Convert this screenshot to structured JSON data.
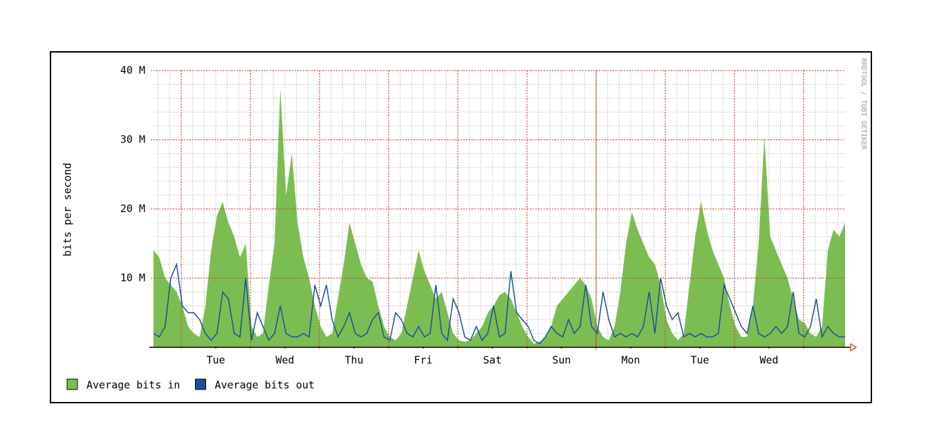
{
  "chart_data": {
    "type": "area",
    "y_label": "bits per second",
    "watermark": "RRDTOOL / TOBI OETIKER",
    "xlim": [
      0,
      240
    ],
    "xticks": [
      {
        "value": 21.6,
        "label": "Tue"
      },
      {
        "value": 45.6,
        "label": "Wed"
      },
      {
        "value": 69.6,
        "label": "Thu"
      },
      {
        "value": 93.6,
        "label": "Fri"
      },
      {
        "value": 117.6,
        "label": "Sat"
      },
      {
        "value": 141.6,
        "label": "Sun"
      },
      {
        "value": 165.6,
        "label": "Mon"
      },
      {
        "value": 189.6,
        "label": "Tue"
      },
      {
        "value": 213.6,
        "label": "Wed"
      }
    ],
    "ylim": [
      0,
      40
    ],
    "yticks": [
      {
        "value": 10,
        "label": "10 M"
      },
      {
        "value": 20,
        "label": "20 M"
      },
      {
        "value": 30,
        "label": "30 M"
      },
      {
        "value": 40,
        "label": "40 M"
      }
    ],
    "grid": true,
    "legend": "bottom-left",
    "x": [
      0,
      2,
      4,
      6,
      8,
      10,
      12,
      14,
      16,
      18,
      20,
      22,
      24,
      26,
      28,
      30,
      32,
      34,
      36,
      38,
      40,
      42,
      44,
      46,
      48,
      50,
      52,
      54,
      56,
      58,
      60,
      62,
      64,
      66,
      68,
      70,
      72,
      74,
      76,
      78,
      80,
      82,
      84,
      86,
      88,
      90,
      92,
      94,
      96,
      98,
      100,
      102,
      104,
      106,
      108,
      110,
      112,
      114,
      116,
      118,
      120,
      122,
      124,
      126,
      128,
      130,
      132,
      134,
      136,
      138,
      140,
      142,
      144,
      146,
      148,
      150,
      152,
      154,
      156,
      158,
      160,
      162,
      164,
      166,
      168,
      170,
      172,
      174,
      176,
      178,
      180,
      182,
      184,
      186,
      188,
      190,
      192,
      194,
      196,
      198,
      200,
      202,
      204,
      206,
      208,
      210,
      212,
      214,
      216,
      218,
      220,
      222,
      224,
      226,
      228,
      230,
      232,
      234,
      236,
      238,
      240
    ],
    "series": [
      {
        "name": "Average bits in",
        "style": "area",
        "color": "#7cbd52",
        "values": [
          14,
          13,
          10,
          9,
          8,
          6,
          3,
          2,
          1.5,
          6,
          14,
          19,
          21,
          18,
          16,
          13,
          15,
          3,
          1.5,
          2,
          9,
          15,
          37.5,
          22,
          28,
          18,
          13,
          10,
          6,
          3,
          1.5,
          2,
          7,
          12,
          18,
          15,
          12,
          10,
          9.5,
          6,
          3,
          1.5,
          1,
          2,
          6,
          10,
          14,
          11,
          9,
          7,
          8,
          5,
          2,
          1,
          0.8,
          1,
          2,
          3,
          5,
          6,
          7.5,
          8,
          7,
          5,
          3,
          1.5,
          0.5,
          0.8,
          1.5,
          3,
          6,
          7,
          8,
          9,
          10,
          9,
          7,
          3,
          1.5,
          1,
          3,
          8,
          15,
          19.5,
          17,
          15,
          13,
          12,
          9,
          4,
          2,
          1,
          2,
          9,
          16,
          21,
          17,
          14,
          12,
          10,
          6,
          3,
          1.5,
          1.5,
          6,
          15,
          30.5,
          16,
          14,
          12,
          10,
          7,
          4,
          3.5,
          2,
          1.5,
          3,
          14,
          17,
          16,
          18
        ]
      },
      {
        "name": "Average bits out",
        "style": "line",
        "color": "#1a4f9c",
        "values": [
          2,
          1.5,
          3,
          10,
          12,
          6,
          5,
          5,
          4,
          2,
          1,
          2,
          8,
          7,
          2,
          1.5,
          10,
          1,
          5,
          3,
          1,
          2,
          6,
          2,
          1.5,
          1.5,
          2,
          1.5,
          9,
          6,
          9,
          4,
          1.5,
          3,
          5,
          2,
          1.5,
          2,
          4,
          5,
          1.5,
          1,
          5,
          4,
          2,
          1.5,
          3,
          1.5,
          2,
          9,
          2,
          1,
          7,
          5,
          1.5,
          1,
          3,
          1,
          2,
          6,
          1.5,
          2,
          11,
          5,
          4,
          3,
          1,
          0.5,
          1.5,
          3,
          2,
          1.5,
          4,
          2,
          3,
          9,
          3,
          2,
          8,
          4,
          1.5,
          2,
          1.5,
          2,
          1.5,
          3,
          8,
          2,
          10,
          6,
          4,
          5,
          1.5,
          2,
          1.5,
          2,
          1.5,
          1.5,
          2,
          9,
          7,
          5,
          3,
          2,
          6,
          2,
          1.5,
          2,
          3,
          2,
          3,
          8,
          2,
          1.5,
          3,
          7,
          1.5,
          3,
          2,
          1.5,
          1.5
        ]
      }
    ]
  }
}
